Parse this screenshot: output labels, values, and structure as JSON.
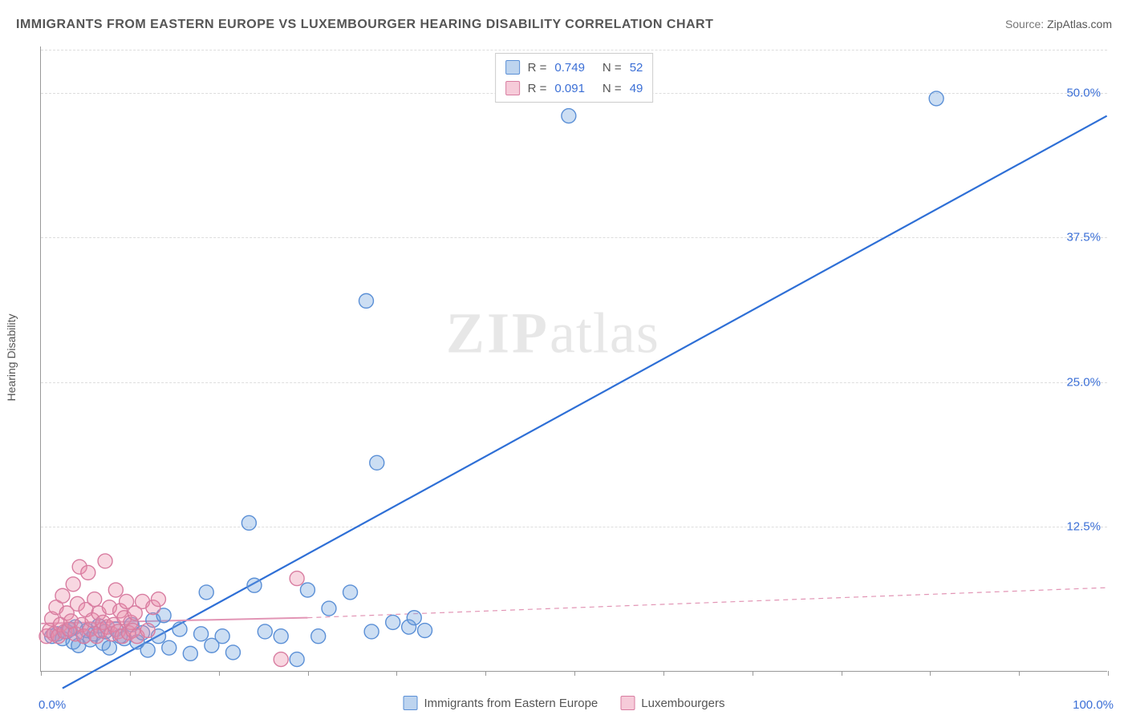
{
  "title": "IMMIGRANTS FROM EASTERN EUROPE VS LUXEMBOURGER HEARING DISABILITY CORRELATION CHART",
  "source_label": "Source:",
  "source_value": "ZipAtlas.com",
  "watermark_a": "ZIP",
  "watermark_b": "atlas",
  "y_axis_title": "Hearing Disability",
  "chart": {
    "type": "scatter",
    "xlim": [
      0,
      100
    ],
    "ylim": [
      0,
      54
    ],
    "x_origin_label": "0.0%",
    "x_max_label": "100.0%",
    "y_ticks": [
      {
        "v": 12.5,
        "label": "12.5%"
      },
      {
        "v": 25.0,
        "label": "25.0%"
      },
      {
        "v": 37.5,
        "label": "37.5%"
      },
      {
        "v": 50.0,
        "label": "50.0%"
      }
    ],
    "x_tick_positions": [
      0,
      8.33,
      16.66,
      25,
      33.33,
      41.66,
      50,
      58.33,
      66.66,
      75,
      83.33,
      91.66,
      100
    ],
    "background_color": "#ffffff",
    "grid_color": "#dddddd",
    "marker_radius": 9,
    "marker_stroke_width": 1.4,
    "series": [
      {
        "key": "blue",
        "name": "Immigrants from Eastern Europe",
        "fill": "rgba(108,160,220,0.35)",
        "stroke": "#5a8fd6",
        "R": "0.749",
        "N": "52",
        "trend": {
          "x1": 2,
          "y1": -1.5,
          "x2": 100,
          "y2": 48.0,
          "color": "#2e6fd6",
          "width": 2.2,
          "dash": ""
        },
        "points": [
          [
            1,
            3.0
          ],
          [
            1.5,
            3.2
          ],
          [
            2,
            2.8
          ],
          [
            2.4,
            3.4
          ],
          [
            2.7,
            3.6
          ],
          [
            3,
            2.5
          ],
          [
            3.2,
            3.8
          ],
          [
            3.5,
            2.2
          ],
          [
            4,
            3.0
          ],
          [
            4.3,
            3.5
          ],
          [
            4.6,
            2.7
          ],
          [
            5,
            3.2
          ],
          [
            5.4,
            3.9
          ],
          [
            5.8,
            2.4
          ],
          [
            6,
            3.4
          ],
          [
            6.4,
            2.0
          ],
          [
            7,
            3.6
          ],
          [
            7.4,
            3.0
          ],
          [
            7.8,
            2.8
          ],
          [
            8.5,
            4.0
          ],
          [
            9,
            2.5
          ],
          [
            9.5,
            3.3
          ],
          [
            10,
            1.8
          ],
          [
            10.5,
            4.4
          ],
          [
            11,
            3.0
          ],
          [
            11.5,
            4.8
          ],
          [
            12,
            2.0
          ],
          [
            13,
            3.6
          ],
          [
            14,
            1.5
          ],
          [
            15,
            3.2
          ],
          [
            15.5,
            6.8
          ],
          [
            16,
            2.2
          ],
          [
            17,
            3.0
          ],
          [
            18,
            1.6
          ],
          [
            19.5,
            12.8
          ],
          [
            20,
            7.4
          ],
          [
            21,
            3.4
          ],
          [
            22.5,
            3.0
          ],
          [
            24,
            1.0
          ],
          [
            25,
            7.0
          ],
          [
            26,
            3.0
          ],
          [
            27,
            5.4
          ],
          [
            29,
            6.8
          ],
          [
            30.5,
            32.0
          ],
          [
            31,
            3.4
          ],
          [
            31.5,
            18.0
          ],
          [
            33,
            4.2
          ],
          [
            34.5,
            3.8
          ],
          [
            35,
            4.6
          ],
          [
            36,
            3.5
          ],
          [
            49.5,
            48.0
          ],
          [
            84,
            49.5
          ]
        ]
      },
      {
        "key": "pink",
        "name": "Luxembourgers",
        "fill": "rgba(235,140,170,0.35)",
        "stroke": "#d87ca0",
        "R": "0.091",
        "N": "49",
        "trend_solid": {
          "x1": 0,
          "y1": 4.1,
          "x2": 25,
          "y2": 4.6,
          "color": "#e295b5",
          "width": 2.0
        },
        "trend_dash": {
          "x1": 25,
          "y1": 4.6,
          "x2": 100,
          "y2": 7.2,
          "color": "#e295b5",
          "width": 1.2,
          "dash": "6,5"
        },
        "points": [
          [
            0.5,
            3.0
          ],
          [
            0.8,
            3.5
          ],
          [
            1.0,
            4.5
          ],
          [
            1.2,
            3.2
          ],
          [
            1.4,
            5.5
          ],
          [
            1.6,
            3.0
          ],
          [
            1.8,
            4.0
          ],
          [
            2.0,
            6.5
          ],
          [
            2.2,
            3.4
          ],
          [
            2.4,
            5.0
          ],
          [
            2.6,
            3.6
          ],
          [
            2.8,
            4.3
          ],
          [
            3.0,
            7.5
          ],
          [
            3.2,
            3.2
          ],
          [
            3.4,
            5.8
          ],
          [
            3.6,
            9.0
          ],
          [
            3.8,
            4.0
          ],
          [
            4.0,
            3.0
          ],
          [
            4.2,
            5.3
          ],
          [
            4.4,
            8.5
          ],
          [
            4.6,
            3.6
          ],
          [
            4.8,
            4.4
          ],
          [
            5.0,
            6.2
          ],
          [
            5.2,
            3.0
          ],
          [
            5.4,
            5.0
          ],
          [
            5.6,
            3.5
          ],
          [
            5.8,
            4.2
          ],
          [
            6.0,
            9.5
          ],
          [
            6.2,
            3.8
          ],
          [
            6.4,
            5.5
          ],
          [
            6.6,
            3.2
          ],
          [
            6.8,
            4.0
          ],
          [
            7.0,
            7.0
          ],
          [
            7.2,
            3.4
          ],
          [
            7.4,
            5.2
          ],
          [
            7.6,
            3.0
          ],
          [
            7.8,
            4.6
          ],
          [
            8.0,
            6.0
          ],
          [
            8.2,
            3.3
          ],
          [
            8.4,
            4.2
          ],
          [
            8.6,
            3.5
          ],
          [
            8.8,
            5.0
          ],
          [
            9.0,
            3.0
          ],
          [
            9.5,
            6.0
          ],
          [
            10.0,
            3.5
          ],
          [
            10.5,
            5.5
          ],
          [
            11.0,
            6.2
          ],
          [
            22.5,
            1.0
          ],
          [
            24,
            8.0
          ]
        ]
      }
    ]
  },
  "legend_bottom": {
    "items": [
      {
        "sw": "blue",
        "label": "Immigrants from Eastern Europe"
      },
      {
        "sw": "pink",
        "label": "Luxembourgers"
      }
    ]
  }
}
